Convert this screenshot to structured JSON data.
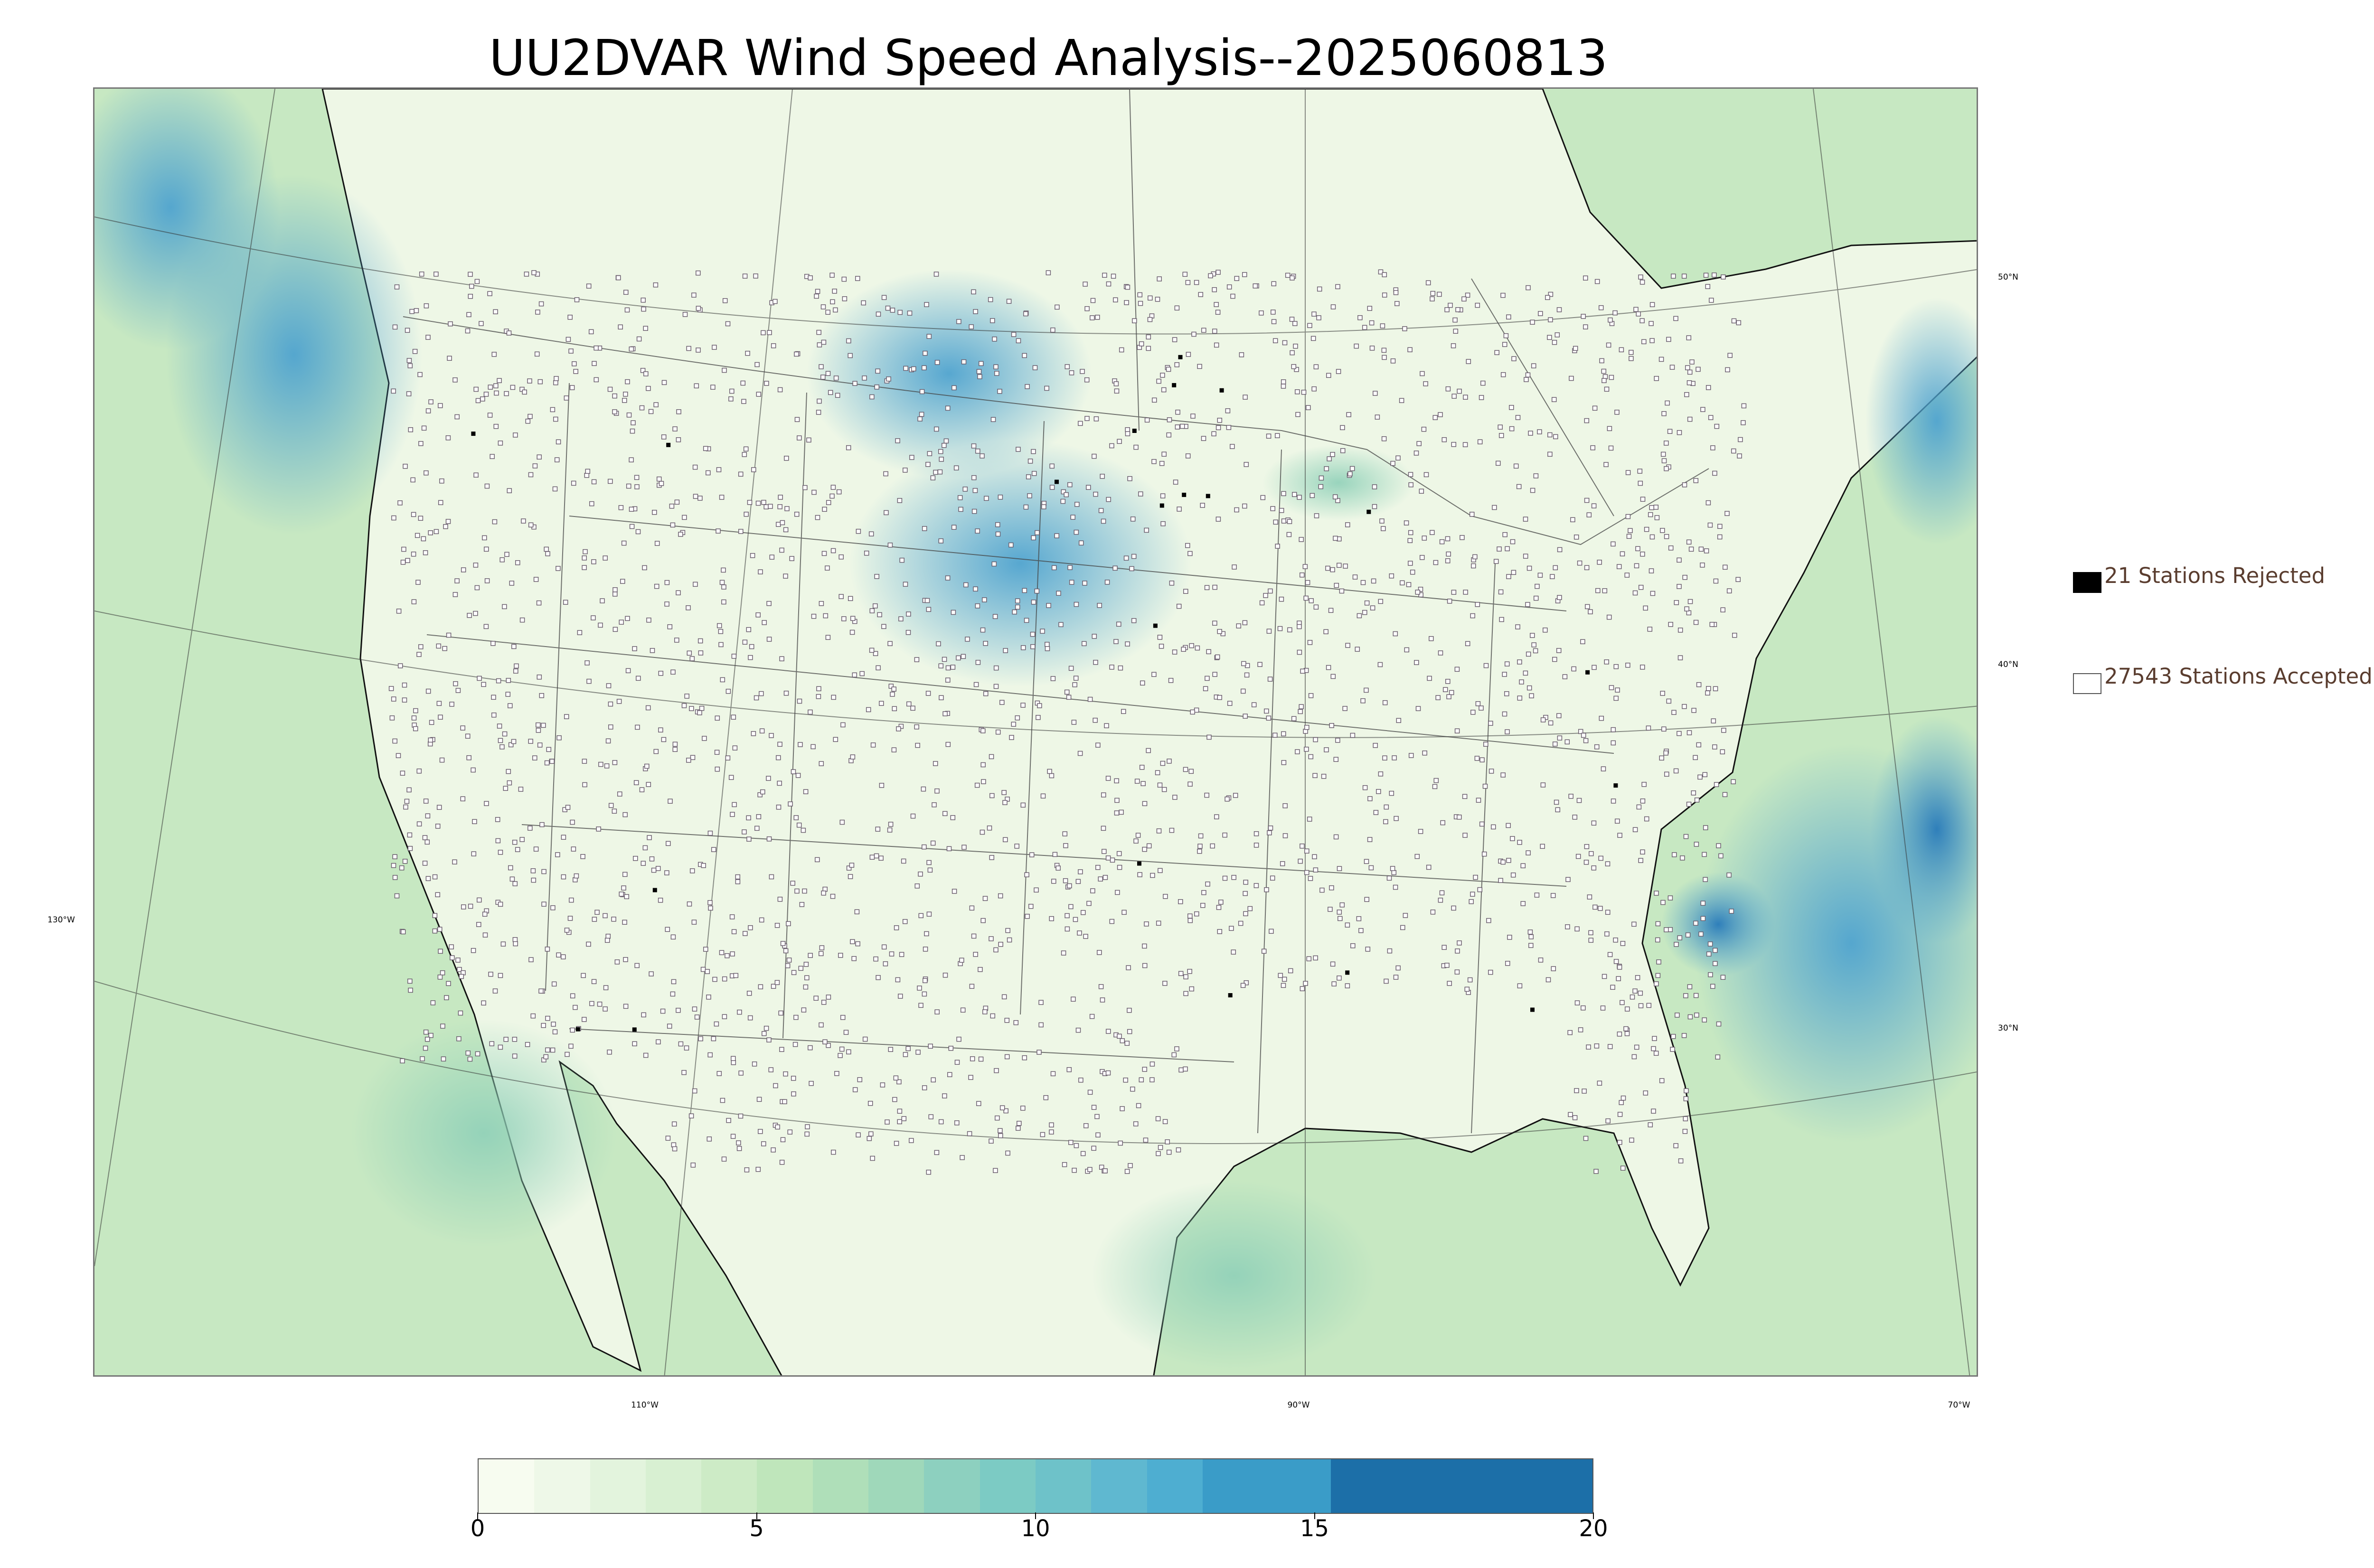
{
  "title": "UU2DVAR Wind Speed Analysis--2025060813",
  "map": {
    "lat_labels": [
      "50°N",
      "40°N",
      "30°N"
    ],
    "lon_labels": [
      "110°W",
      "90°W",
      "70°W"
    ],
    "west_label": "130°W",
    "colors": {
      "land_base": "#eef7e6",
      "ocean_base": "#bfe3bd",
      "high_wind": "#4fa3cf",
      "coast": "#111111",
      "borders": "#555555",
      "station_accepted_fill": "#ffffff",
      "station_accepted_stroke": "#6b5f6e",
      "station_rejected": "#000000"
    }
  },
  "legend": {
    "rejected_label": "21 Stations Rejected",
    "accepted_label": "27543 Stations Accepted",
    "rejected_color": "#000000",
    "accepted_color": "#ffffff"
  },
  "colorbar": {
    "ticks": [
      "0",
      "5",
      "10",
      "15",
      "20"
    ],
    "range": [
      0,
      20
    ],
    "bands": [
      {
        "from": 0,
        "to": 1,
        "color": "#f7fcf0"
      },
      {
        "from": 1,
        "to": 2,
        "color": "#eef8e8"
      },
      {
        "from": 2,
        "to": 3,
        "color": "#e3f4dd"
      },
      {
        "from": 3,
        "to": 4,
        "color": "#d8f0d2"
      },
      {
        "from": 4,
        "to": 5,
        "color": "#cdebc6"
      },
      {
        "from": 5,
        "to": 6,
        "color": "#bfe6bb"
      },
      {
        "from": 6,
        "to": 7,
        "color": "#afdfb9"
      },
      {
        "from": 7,
        "to": 8,
        "color": "#9fd8ba"
      },
      {
        "from": 8,
        "to": 9,
        "color": "#8dd0bf"
      },
      {
        "from": 9,
        "to": 10,
        "color": "#7ccbc4"
      },
      {
        "from": 10,
        "to": 11,
        "color": "#6ec2c9"
      },
      {
        "from": 11,
        "to": 12,
        "color": "#5fb8d0"
      },
      {
        "from": 12,
        "to": 13,
        "color": "#4eaed1"
      },
      {
        "from": 13,
        "to": 15.3,
        "color": "#3a9cc8"
      },
      {
        "from": 15.3,
        "to": 20,
        "color": "#1c6fa8"
      }
    ]
  }
}
